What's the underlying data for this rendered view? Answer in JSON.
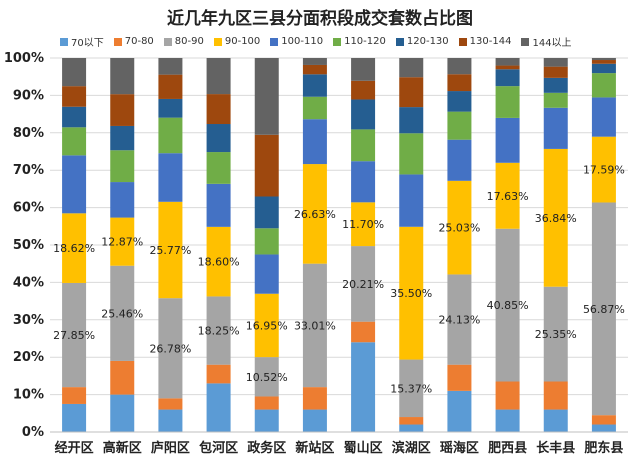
{
  "chart_data": {
    "type": "bar",
    "stacked": true,
    "normalized": true,
    "title": "近几年九区三县分面积段成交套数占比图",
    "categories": [
      "经开区",
      "高新区",
      "庐阳区",
      "包河区",
      "政务区",
      "新站区",
      "蜀山区",
      "滨湖区",
      "瑶海区",
      "肥西县",
      "长丰县",
      "肥东县"
    ],
    "y_ticks": [
      "0%",
      "10%",
      "20%",
      "30%",
      "40%",
      "50%",
      "60%",
      "70%",
      "80%",
      "90%",
      "100%"
    ],
    "ylim": [
      0,
      100
    ],
    "legend_position": "top",
    "grid": true,
    "series": [
      {
        "name": "70以下",
        "color": "#5b9bd5",
        "values": [
          7.5,
          10,
          6,
          13,
          6,
          6,
          24,
          2,
          11,
          6,
          6,
          2
        ]
      },
      {
        "name": "70-80",
        "color": "#ed7d31",
        "values": [
          4.5,
          9,
          3,
          5,
          3.5,
          6,
          5.5,
          2,
          7,
          7.5,
          7.5,
          2.5
        ]
      },
      {
        "name": "80-90",
        "color": "#a5a5a5",
        "values": [
          27.85,
          25.46,
          26.78,
          18.25,
          10.52,
          33.01,
          20.21,
          15.37,
          24.13,
          40.85,
          25.35,
          56.87
        ]
      },
      {
        "name": "90-100",
        "color": "#ffc000",
        "values": [
          18.62,
          12.87,
          25.77,
          18.6,
          16.95,
          26.63,
          11.7,
          35.5,
          25.03,
          17.63,
          36.84,
          17.59
        ]
      },
      {
        "name": "100-110",
        "color": "#4472c4",
        "values": [
          15.5,
          9.5,
          13,
          11.5,
          10.5,
          12,
          11,
          14,
          11,
          12,
          11,
          10.5
        ]
      },
      {
        "name": "110-120",
        "color": "#70ad47",
        "values": [
          7.5,
          8.5,
          9.5,
          8.5,
          7,
          6,
          8.5,
          11,
          7.5,
          8.5,
          4,
          6.5
        ]
      },
      {
        "name": "120-130",
        "color": "#255e91",
        "values": [
          5.5,
          6.5,
          5,
          7.5,
          8.5,
          6,
          8,
          7,
          5.5,
          4.5,
          4,
          2.5
        ]
      },
      {
        "name": "130-144",
        "color": "#9e480e",
        "values": [
          5.5,
          8.5,
          6.5,
          8,
          16.5,
          2.5,
          5,
          8,
          4.5,
          1,
          3,
          1
        ]
      },
      {
        "name": "144以上",
        "color": "#636363",
        "values": [
          7.53,
          9.67,
          4.45,
          9.65,
          20.53,
          1.86,
          6.09,
          5.13,
          4.34,
          2.02,
          2.31,
          0.54
        ]
      }
    ],
    "data_labels": {
      "80-90": [
        "27.85%",
        "25.46%",
        "26.78%",
        "18.25%",
        "10.52%",
        "33.01%",
        "20.21%",
        "15.37%",
        "24.13%",
        "40.85%",
        "25.35%",
        "56.87%"
      ],
      "90-100": [
        "18.62%",
        "12.87%",
        "25.77%",
        "18.60%",
        "16.95%",
        "26.63%",
        "11.70%",
        "35.50%",
        "25.03%",
        "17.63%",
        "36.84%",
        "17.59%"
      ]
    }
  }
}
